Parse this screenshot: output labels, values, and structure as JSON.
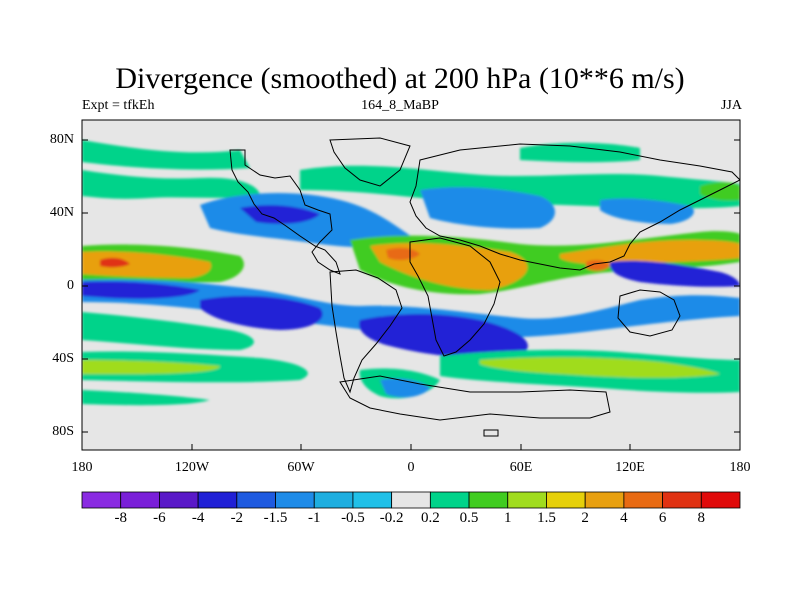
{
  "title": "Divergence (smoothed) at 200 hPa (10**6 m/s)",
  "subtitle_left": "Expt = tfkEh",
  "subtitle_center": "164_8_MaBP",
  "subtitle_right": "JJA",
  "axes": {
    "lat_ticks": [
      "80N",
      "40N",
      "0",
      "40S",
      "80S"
    ],
    "lon_ticks": [
      "180",
      "120W",
      "60W",
      "0",
      "60E",
      "120E",
      "180"
    ]
  },
  "colorbar": {
    "labels": [
      "-8",
      "-6",
      "-4",
      "-2",
      "-1.5",
      "-1",
      "-0.5",
      "-0.2",
      "0.2",
      "0.5",
      "1",
      "1.5",
      "2",
      "4",
      "6",
      "8"
    ],
    "colors": [
      "#8a2be2",
      "#7a1fd8",
      "#5a19c8",
      "#2020d6",
      "#1e5ae0",
      "#1e8be8",
      "#1eaee0",
      "#20c0e8",
      "#e6e6e6",
      "#00d38a",
      "#40cc20",
      "#a0dc1e",
      "#e6d00a",
      "#e8a010",
      "#e86a12",
      "#e03212",
      "#e00a0a"
    ]
  },
  "map": {
    "background_color": "#e6e6e6",
    "boundary_color": "#000000"
  }
}
